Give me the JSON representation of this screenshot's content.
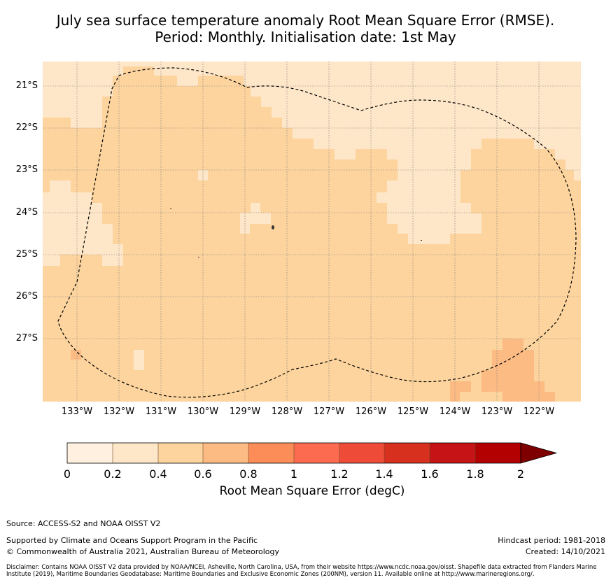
{
  "title": {
    "line1": "July sea surface temperature anomaly Root Mean Square Error (RMSE).",
    "line2": "Period: Monthly. Initialisation date: 1st May"
  },
  "map": {
    "lat_labels": [
      "21°S",
      "22°S",
      "23°S",
      "24°S",
      "25°S",
      "26°S",
      "27°S"
    ],
    "lon_labels": [
      "133°W",
      "132°W",
      "131°W",
      "130°W",
      "129°W",
      "128°W",
      "127°W",
      "126°W",
      "125°W",
      "124°W",
      "123°W",
      "122°W"
    ],
    "grid": "dotted",
    "boundary": "dashed EEZ outline"
  },
  "colorbar": {
    "ticks": [
      "0",
      "0.2",
      "0.4",
      "0.6",
      "0.8",
      "1",
      "1.2",
      "1.4",
      "1.6",
      "1.8",
      "2"
    ],
    "colors": [
      "#fff0e0",
      "#fee6c8",
      "#fdd49e",
      "#fdbb84",
      "#fc8d59",
      "#fc6b4f",
      "#ef4b39",
      "#d7301f",
      "#c61315",
      "#b30000",
      "#7f0000"
    ],
    "label": "Root Mean Square Error (degC)",
    "extend": "max"
  },
  "footer": {
    "source": "Source: ACCESS-S2 and NOAA OISST V2",
    "supported": "Supported by Climate and Oceans Support Program in the Pacific",
    "copyright": "© Commonwealth of Australia 2021, Australian Bureau of Meteorology",
    "hindcast": "Hindcast period: 1981-2018",
    "created": "Created: 14/10/2021",
    "disclaimer": "Disclaimer: Contains NOAA OISST V2 data provided by NOAA/NCEI, Asheville, North Carolina, USA, from their website https://www.ncdc.noaa.gov/oisst. Shapefile data extracted from Flanders Marine Institute (2019), Maritime Boundaries Geodatabase: Maritime Boundaries and Exclusive Economic Zones (200NM), version 11. Available online at http://www.marineregions.org/."
  }
}
